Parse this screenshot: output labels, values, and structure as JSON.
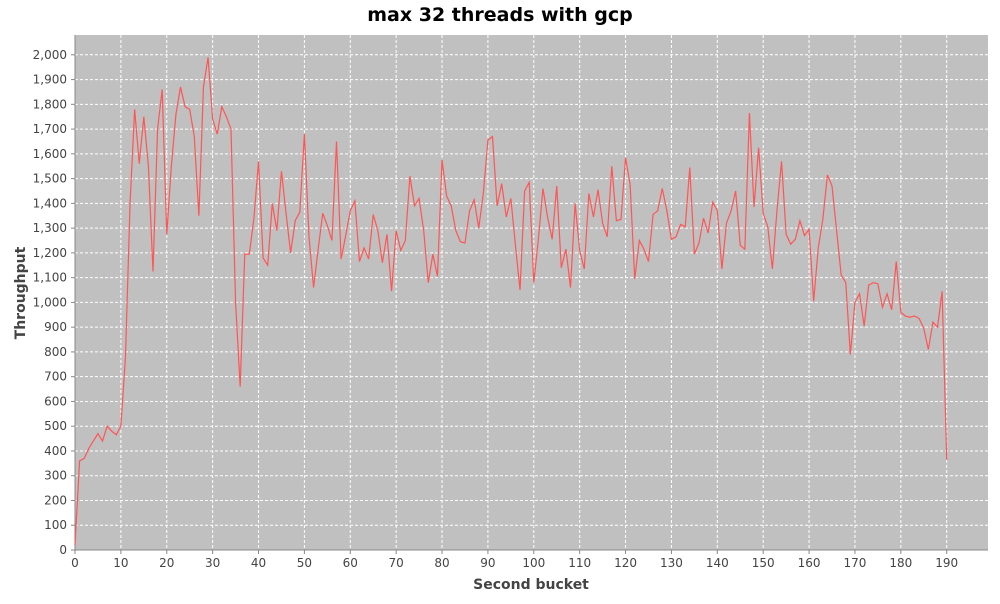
{
  "chart_data": {
    "type": "line",
    "title": "max 32 threads with gcp",
    "xlabel": "Second bucket",
    "ylabel": "Throughput",
    "xlim": [
      0,
      199
    ],
    "ylim": [
      0,
      2080
    ],
    "x_ticks": [
      0,
      10,
      20,
      30,
      40,
      50,
      60,
      70,
      80,
      90,
      100,
      110,
      120,
      130,
      140,
      150,
      160,
      170,
      180,
      190
    ],
    "y_ticks": [
      0,
      100,
      200,
      300,
      400,
      500,
      600,
      700,
      800,
      900,
      1000,
      1100,
      1200,
      1300,
      1400,
      1500,
      1600,
      1700,
      1800,
      1900,
      2000
    ],
    "y_tick_labels": [
      "0",
      "100",
      "200",
      "300",
      "400",
      "500",
      "600",
      "700",
      "800",
      "900",
      "1,000",
      "1,100",
      "1,200",
      "1,300",
      "1,400",
      "1,500",
      "1,600",
      "1,700",
      "1,800",
      "1,900",
      "2,000"
    ],
    "grid": true,
    "background_color": "#c0c0c0",
    "line_color": "#ff5555",
    "series": [
      {
        "name": "",
        "x": [
          0,
          1,
          2,
          3,
          4,
          5,
          6,
          7,
          8,
          9,
          10,
          11,
          12,
          13,
          14,
          15,
          16,
          17,
          18,
          19,
          20,
          21,
          22,
          23,
          24,
          25,
          26,
          27,
          28,
          29,
          30,
          31,
          32,
          33,
          34,
          35,
          36,
          37,
          38,
          39,
          40,
          41,
          42,
          43,
          44,
          45,
          46,
          47,
          48,
          49,
          50,
          51,
          52,
          53,
          54,
          55,
          56,
          57,
          58,
          59,
          60,
          61,
          62,
          63,
          64,
          65,
          66,
          67,
          68,
          69,
          70,
          71,
          72,
          73,
          74,
          75,
          76,
          77,
          78,
          79,
          80,
          81,
          82,
          83,
          84,
          85,
          86,
          87,
          88,
          89,
          90,
          91,
          92,
          93,
          94,
          95,
          96,
          97,
          98,
          99,
          100,
          101,
          102,
          103,
          104,
          105,
          106,
          107,
          108,
          109,
          110,
          111,
          112,
          113,
          114,
          115,
          116,
          117,
          118,
          119,
          120,
          121,
          122,
          123,
          124,
          125,
          126,
          127,
          128,
          129,
          130,
          131,
          132,
          133,
          134,
          135,
          136,
          137,
          138,
          139,
          140,
          141,
          142,
          143,
          144,
          145,
          146,
          147,
          148,
          149,
          150,
          151,
          152,
          153,
          154,
          155,
          156,
          157,
          158,
          159,
          160,
          161,
          162,
          163,
          164,
          165,
          166,
          167,
          168,
          169,
          170,
          171,
          172,
          173,
          174,
          175,
          176,
          177,
          178,
          179,
          180,
          181,
          182,
          183,
          184,
          185,
          186,
          187,
          188,
          189,
          190
        ],
        "y": [
          20,
          360,
          370,
          410,
          440,
          470,
          440,
          500,
          480,
          465,
          500,
          780,
          1400,
          1780,
          1560,
          1750,
          1550,
          1125,
          1700,
          1860,
          1275,
          1550,
          1760,
          1870,
          1790,
          1780,
          1670,
          1350,
          1870,
          1990,
          1740,
          1680,
          1790,
          1750,
          1700,
          1000,
          660,
          1195,
          1195,
          1340,
          1570,
          1180,
          1150,
          1400,
          1290,
          1530,
          1360,
          1200,
          1330,
          1365,
          1680,
          1265,
          1060,
          1215,
          1360,
          1310,
          1250,
          1650,
          1175,
          1270,
          1370,
          1410,
          1165,
          1220,
          1175,
          1355,
          1290,
          1160,
          1275,
          1045,
          1290,
          1210,
          1250,
          1510,
          1390,
          1420,
          1290,
          1080,
          1195,
          1105,
          1575,
          1430,
          1390,
          1290,
          1245,
          1240,
          1370,
          1415,
          1300,
          1440,
          1655,
          1670,
          1390,
          1480,
          1345,
          1420,
          1230,
          1050,
          1450,
          1485,
          1080,
          1255,
          1460,
          1345,
          1255,
          1470,
          1140,
          1215,
          1060,
          1400,
          1210,
          1135,
          1440,
          1345,
          1455,
          1320,
          1265,
          1550,
          1330,
          1335,
          1585,
          1475,
          1095,
          1250,
          1215,
          1165,
          1355,
          1370,
          1460,
          1370,
          1255,
          1265,
          1315,
          1305,
          1545,
          1195,
          1240,
          1340,
          1280,
          1405,
          1370,
          1135,
          1320,
          1370,
          1450,
          1230,
          1215,
          1765,
          1385,
          1625,
          1360,
          1305,
          1135,
          1370,
          1570,
          1275,
          1235,
          1255,
          1330,
          1270,
          1295,
          1005,
          1220,
          1335,
          1515,
          1470,
          1290,
          1110,
          1080,
          790,
          1000,
          1035,
          905,
          1070,
          1080,
          1075,
          980,
          1035,
          970,
          1165,
          960,
          945,
          940,
          945,
          935,
          895,
          810,
          920,
          900,
          1045,
          365
        ]
      }
    ]
  }
}
